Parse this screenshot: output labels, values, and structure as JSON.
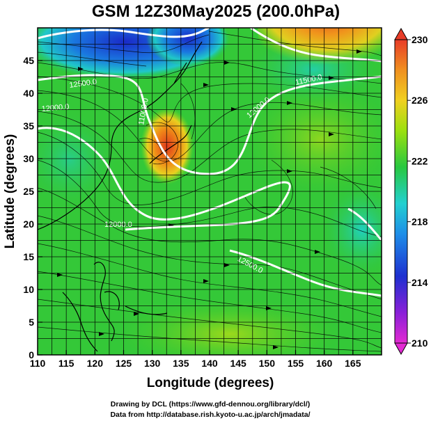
{
  "title": "GSM 12Z30May2025 (200.0hPa)",
  "xlabel": "Longitude (degrees)",
  "ylabel": "Latitude  (degrees)",
  "x_ticks": [
    "110",
    "115",
    "120",
    "125",
    "130",
    "135",
    "140",
    "145",
    "150",
    "155",
    "160",
    "165"
  ],
  "y_ticks": [
    "0",
    "5",
    "10",
    "15",
    "20",
    "25",
    "30",
    "35",
    "40",
    "45"
  ],
  "colorbar": {
    "ticks": [
      "210",
      "214",
      "218",
      "222",
      "226",
      "230"
    ],
    "min": 210,
    "max": 230
  },
  "map": {
    "lon_range": [
      110,
      170
    ],
    "lat_range": [
      0,
      50
    ],
    "gridlines": true,
    "field": "temperature (K) shaded, streamlines, geopotential contours"
  },
  "contour_labels": [
    "12500.0",
    "12000.0",
    "12000.0",
    "12500.0",
    "11500.0",
    "12000.0",
    "11000.0"
  ],
  "colors": {
    "warm_core": "#e8561e",
    "cold_core": "#1e3cd2",
    "base_field": "#32c832",
    "contour": "#ffffff",
    "streamline": "#000000"
  },
  "credits": {
    "line1": "Drawing by DCL (https://www.gfd-dennou.org/library/dcl/)",
    "line2": "Data from http://database.rish.kyoto-u.ac.jp/arch/jmadata/"
  }
}
